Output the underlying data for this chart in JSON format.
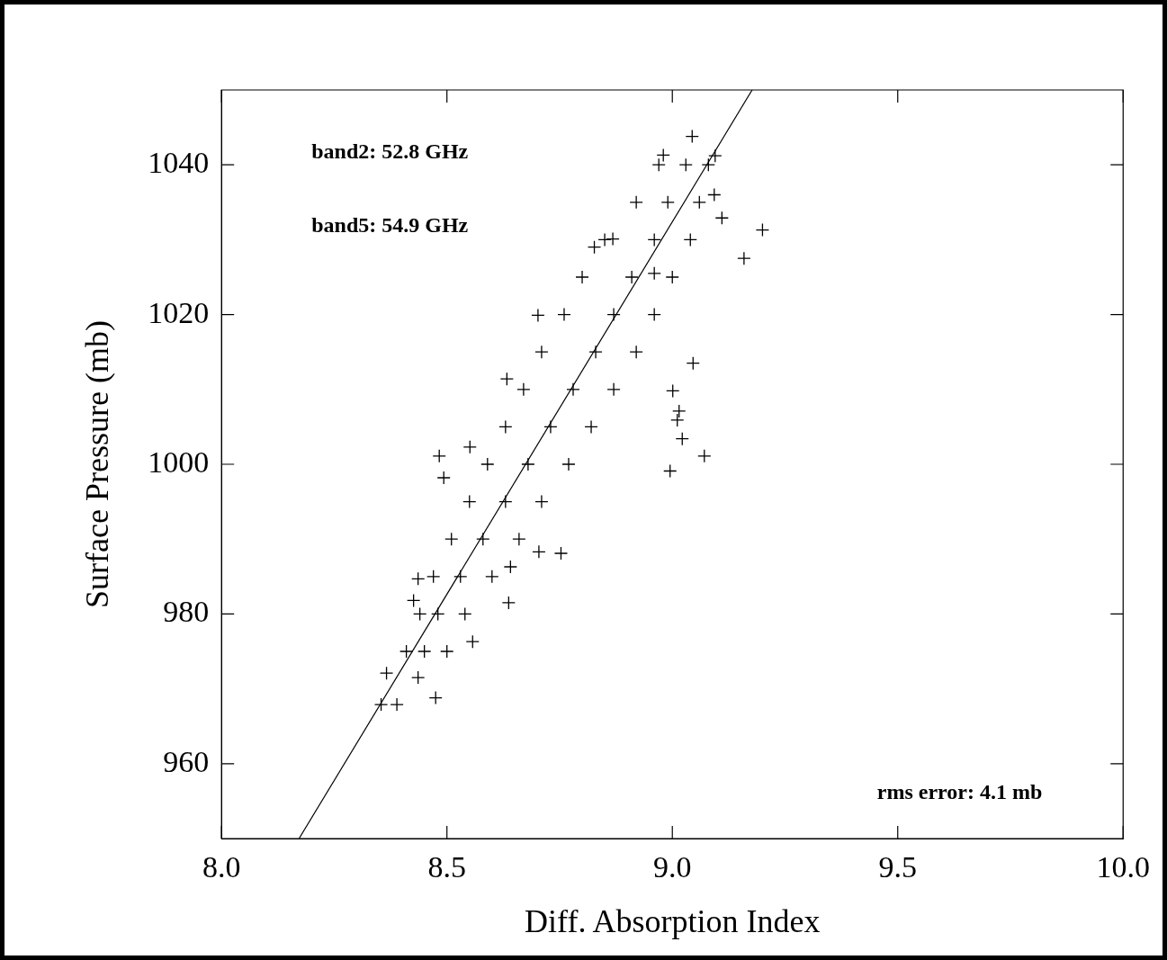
{
  "chart_data": {
    "type": "scatter",
    "xlabel": "Diff. Absorption Index",
    "ylabel": "Surface Pressure (mb)",
    "xlim": [
      8.0,
      10.0
    ],
    "xticks": [
      {
        "value": 8,
        "label": "8.0"
      },
      {
        "value": 8.5,
        "label": "8.5"
      },
      {
        "value": 9,
        "label": "9.0"
      },
      {
        "value": 9.5,
        "label": "9.5"
      },
      {
        "value": 10,
        "label": "10.0"
      }
    ],
    "ylim": [
      950,
      1050
    ],
    "yticks": [
      960,
      980,
      1000,
      1020,
      1040
    ],
    "grid": false,
    "legend": false,
    "marker": "cross",
    "annotations": [
      "band2: 52.8 GHz",
      "band5: 54.9 GHz",
      "rms error: 4.1 mb"
    ],
    "series": [
      {
        "color": "#000000",
        "x": [
          8.41,
          8.45,
          8.5,
          8.44,
          8.48,
          8.54,
          8.47,
          8.53,
          8.6,
          8.51,
          8.58,
          8.66,
          8.55,
          8.63,
          8.71,
          8.59,
          8.68,
          8.77,
          8.63,
          8.73,
          8.82,
          8.67,
          8.78,
          8.87,
          8.71,
          8.83,
          8.92,
          8.76,
          8.87,
          8.96,
          8.8,
          8.91,
          9.0,
          8.85,
          8.96,
          9.04,
          8.92,
          8.99,
          9.06,
          8.97,
          9.03,
          9.08,
          8.483,
          8.493,
          8.551,
          9.071,
          9.2,
          9.159,
          9.11,
          9.095,
          9.044,
          9.015,
          9.011,
          9.046,
          9.001,
          8.641,
          8.704,
          8.753,
          8.702,
          8.633,
          8.354,
          8.389,
          8.475,
          8.426,
          8.436,
          8.637,
          8.557,
          8.995,
          9.022,
          8.96,
          8.98,
          9.093,
          8.827,
          8.868,
          8.366,
          8.436
        ],
        "values": [
          975,
          975,
          975,
          980,
          980,
          980,
          985,
          985,
          985,
          990,
          990,
          990,
          995,
          995,
          995,
          1000,
          1000,
          1000,
          1005,
          1005,
          1005,
          1010,
          1010,
          1010,
          1015,
          1015,
          1015,
          1020,
          1020,
          1020,
          1025,
          1025,
          1025,
          1030,
          1030,
          1030,
          1035,
          1035,
          1035,
          1040,
          1040,
          1040,
          1001.1,
          998.2,
          1002.3,
          1001.1,
          1031.3,
          1027.5,
          1032.9,
          1041.2,
          1043.8,
          1007.1,
          1005.9,
          1013.5,
          1009.8,
          986.3,
          988.3,
          988.1,
          1019.9,
          1011.4,
          967.9,
          967.9,
          968.8,
          981.8,
          984.7,
          981.5,
          976.3,
          999.1,
          1003.4,
          1025.5,
          1041.3,
          1036.0,
          1029.0,
          1030.1,
          972.1,
          971.5
        ]
      },
      {
        "type": "line",
        "color": "#000000",
        "marker": "none",
        "line_style": "solid",
        "x": [
          8.172,
          9.177
        ],
        "values": [
          950,
          1050
        ]
      }
    ]
  }
}
